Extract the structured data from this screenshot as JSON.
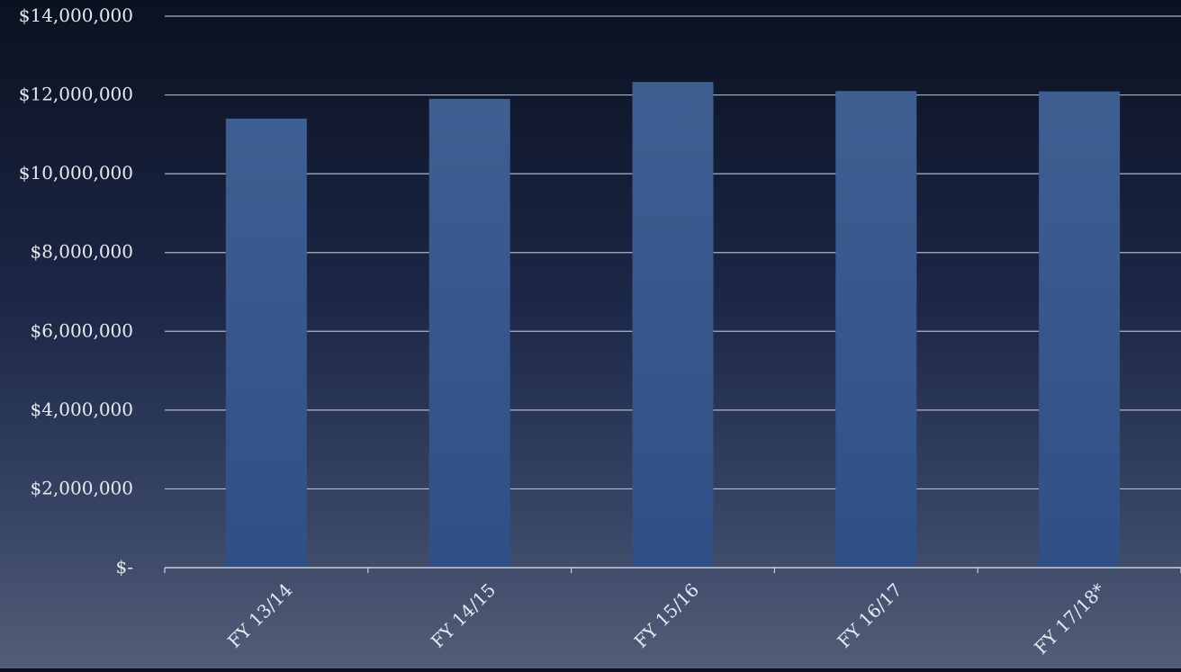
{
  "chart_data": {
    "type": "bar",
    "title": "",
    "xlabel": "",
    "ylabel": "",
    "categories": [
      "FY 13/14",
      "FY 14/15",
      "FY 15/16",
      "FY 16/17",
      "FY 17/18*"
    ],
    "values": [
      11400000,
      11900000,
      12330000,
      12100000,
      12090000
    ],
    "ylim": [
      0,
      14000000
    ],
    "y_ticks": [
      0,
      2000000,
      4000000,
      6000000,
      8000000,
      10000000,
      12000000,
      14000000
    ],
    "y_tick_labels": [
      "$-",
      "$2,000,000",
      "$4,000,000",
      "$6,000,000",
      "$8,000,000",
      "$10,000,000",
      "$12,000,000",
      "$14,000,000"
    ],
    "grid": true,
    "legend": "none",
    "colors": {
      "bar_top": "#3f5e92",
      "bar_bottom": "#2f4f86",
      "grid": "#c9cfdd",
      "text": "#e6e9f1"
    }
  }
}
